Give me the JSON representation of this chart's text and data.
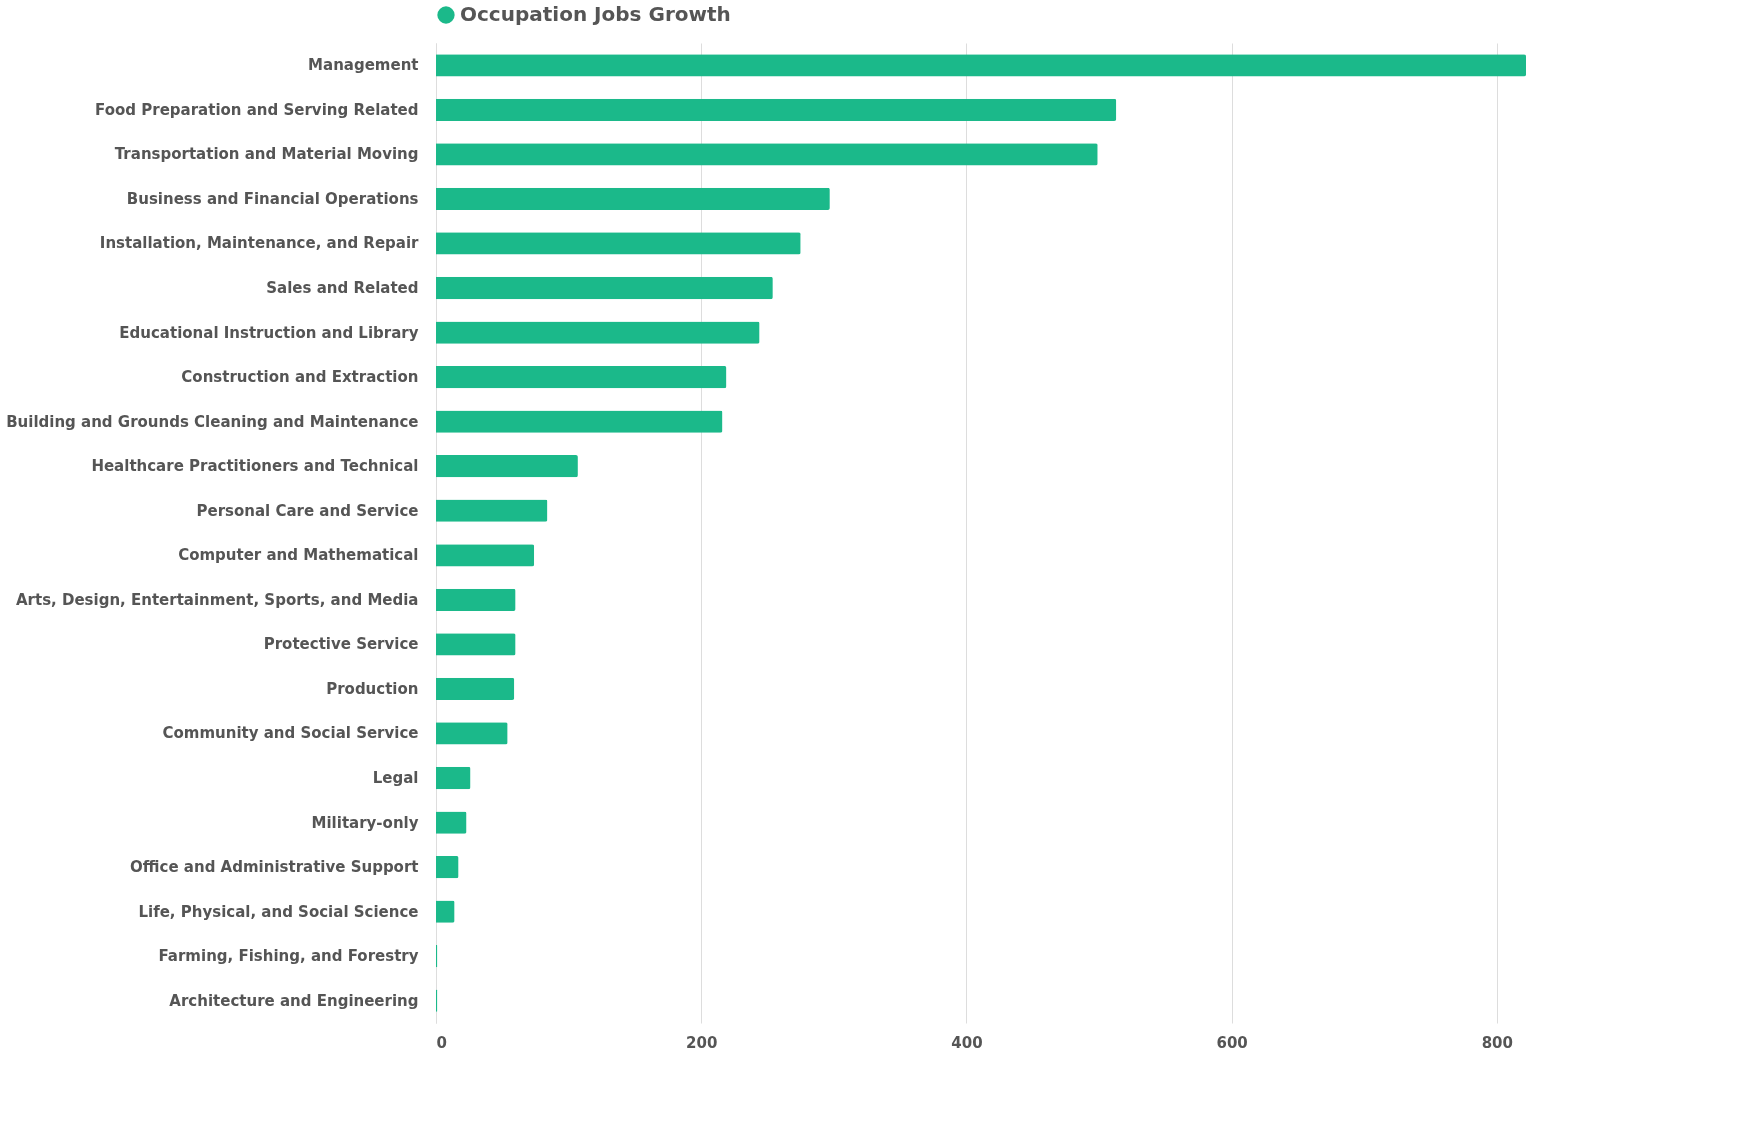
{
  "chart_data": {
    "type": "bar",
    "orientation": "horizontal",
    "categories": [
      "Management",
      "Food Preparation and Serving Related",
      "Transportation and Material Moving",
      "Business and Financial Operations",
      "Installation, Maintenance, and Repair",
      "Sales and Related",
      "Educational Instruction and Library",
      "Construction and Extraction",
      "Building and Grounds Cleaning and Maintenance",
      "Healthcare Practitioners and Technical",
      "Personal Care and Service",
      "Computer and Mathematical",
      "Arts, Design, Entertainment, Sports, and Media",
      "Protective Service",
      "Production",
      "Community and Social Service",
      "Legal",
      "Military-only",
      "Office and Administrative Support",
      "Life, Physical, and Social Science",
      "Farming, Fishing, and Forestry",
      "Architecture and Engineering"
    ],
    "series": [
      {
        "name": "Occupation Jobs Growth",
        "color": "#1bb98a",
        "values": [
          822,
          513,
          499,
          297,
          275,
          254,
          244,
          219,
          216,
          107,
          84,
          74,
          60,
          60,
          59,
          54,
          26,
          23,
          17,
          14,
          1,
          1
        ]
      }
    ],
    "xlim": [
      0,
      822
    ],
    "xticks": [
      0,
      200,
      400,
      600,
      800
    ],
    "grid": "x",
    "legend": "top"
  }
}
